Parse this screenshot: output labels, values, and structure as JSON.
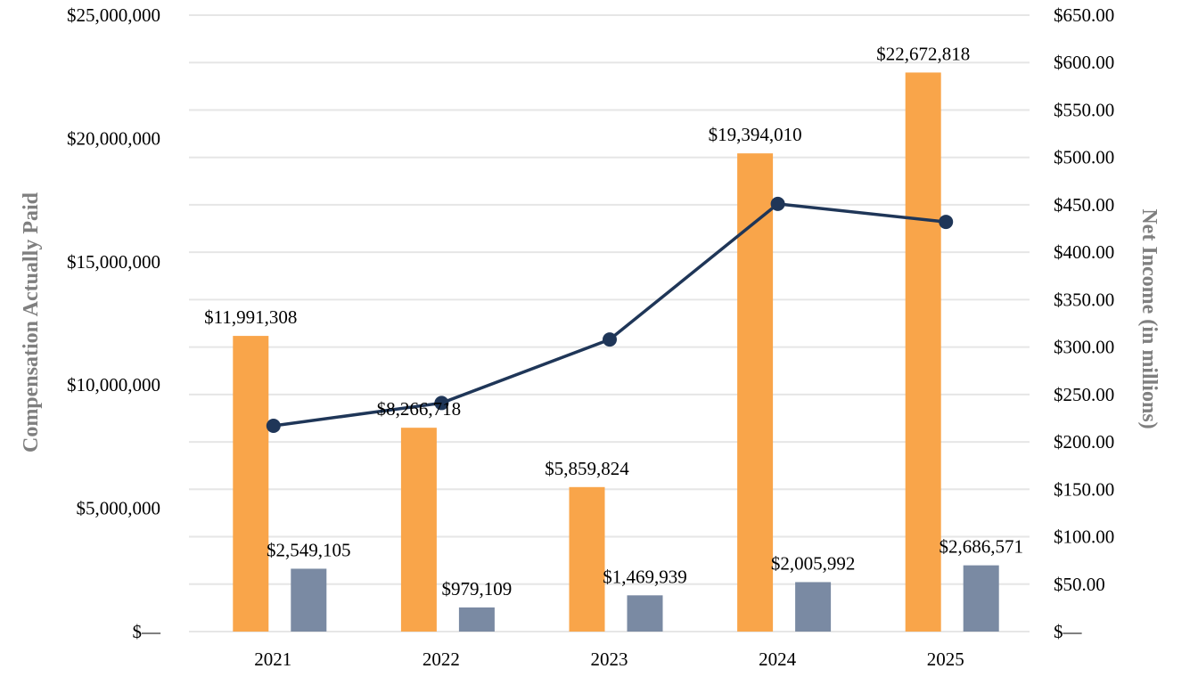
{
  "chart_data": {
    "type": "bar",
    "categories": [
      "2021",
      "2022",
      "2023",
      "2024",
      "2025"
    ],
    "series": [
      {
        "kind": "bar",
        "axis": "left",
        "color": "#f9a54a",
        "values": [
          11991308,
          8266718,
          5859824,
          19394010,
          22672818
        ],
        "labels": [
          "$11,991,308",
          "$8,266,718",
          "$5,859,824",
          "$19,394,010",
          "$22,672,818"
        ]
      },
      {
        "kind": "bar",
        "axis": "left",
        "color": "#7a8aa3",
        "values": [
          2549105,
          979109,
          1469939,
          2005992,
          2686571
        ],
        "labels": [
          "$2,549,105",
          "$979,109",
          "$1,469,939",
          "$2,005,992",
          "$2,686,571"
        ]
      },
      {
        "kind": "line",
        "axis": "right",
        "color": "#1f3658",
        "values": [
          217,
          241,
          308,
          451,
          432
        ]
      }
    ],
    "y_left": {
      "label": "Compensation Actually Paid",
      "range": [
        0,
        25000000
      ],
      "ticks": [
        0,
        5000000,
        10000000,
        15000000,
        20000000,
        25000000
      ],
      "tick_labels": [
        "$—",
        "$5,000,000",
        "$10,000,000",
        "$15,000,000",
        "$20,000,000",
        "$25,000,000"
      ]
    },
    "y_right": {
      "label": "Net Income (in millions)",
      "range": [
        0,
        650
      ],
      "ticks": [
        0,
        50,
        100,
        150,
        200,
        250,
        300,
        350,
        400,
        450,
        500,
        550,
        600,
        650
      ],
      "tick_labels": [
        "$—",
        "$50.00",
        "$100.00",
        "$150.00",
        "$200.00",
        "$250.00",
        "$300.00",
        "$350.00",
        "$400.00",
        "$450.00",
        "$500.00",
        "$550.00",
        "$600.00",
        "$650.00"
      ]
    },
    "grid": true,
    "gridline_color": "#e6e6e6",
    "legend": "none"
  }
}
